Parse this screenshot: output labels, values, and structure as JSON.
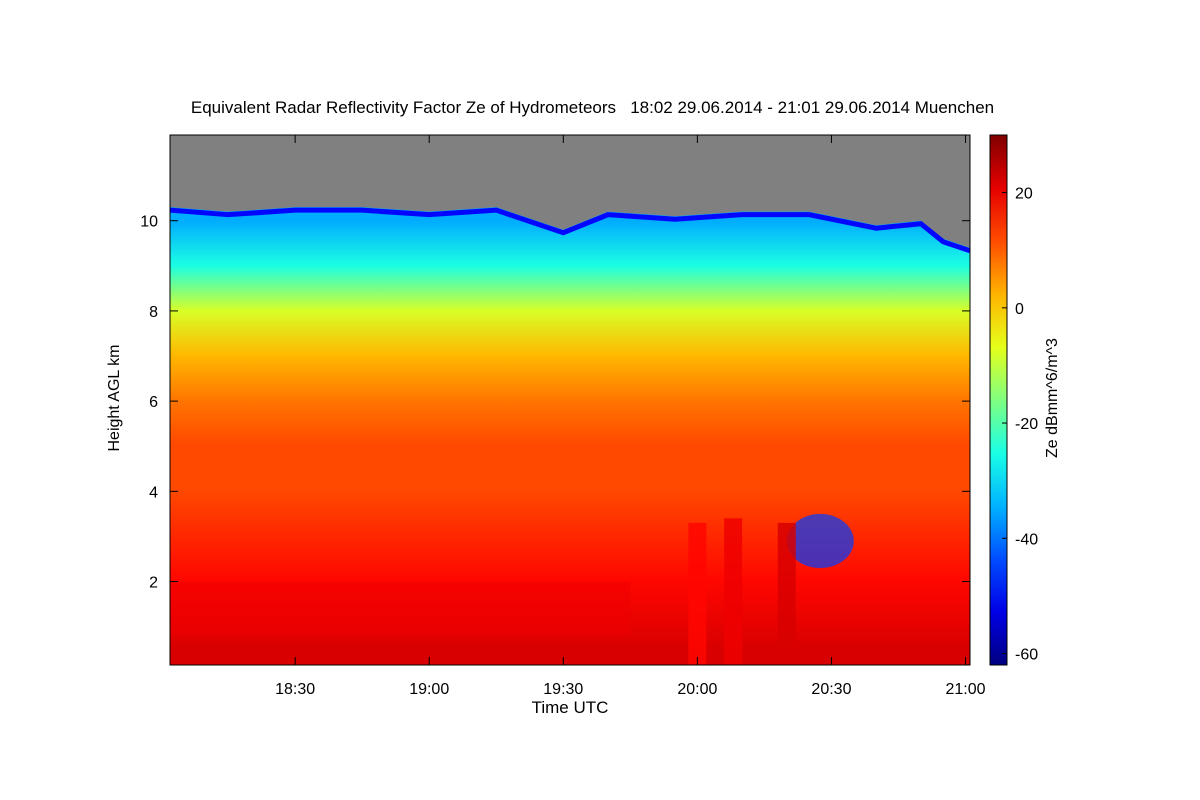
{
  "chart_data": {
    "type": "heatmap",
    "title": "Equivalent Radar Reflectivity Factor Ze of Hydrometeors   18:02 29.06.2014 - 21:01 29.06.2014 Muenchen",
    "xlabel": "Time UTC",
    "ylabel": "Height AGL km",
    "colorbar_label": "Ze dBmm^6/m^3",
    "x_range": [
      "18:02",
      "21:01"
    ],
    "y_range_km": [
      0.15,
      11.9
    ],
    "x_ticks": [
      "18:30",
      "19:00",
      "19:30",
      "20:00",
      "20:30",
      "21:00"
    ],
    "y_ticks": [
      2,
      4,
      6,
      8,
      10
    ],
    "colorbar_range": [
      -62,
      30
    ],
    "colorbar_ticks": [
      20,
      0,
      -20,
      -40,
      -60
    ],
    "no_signal_color": "#808080",
    "cloud_top_km": [
      {
        "t": "18:02",
        "h": 10.3
      },
      {
        "t": "18:15",
        "h": 10.2
      },
      {
        "t": "18:30",
        "h": 10.3
      },
      {
        "t": "18:45",
        "h": 10.3
      },
      {
        "t": "19:00",
        "h": 10.2
      },
      {
        "t": "19:15",
        "h": 10.3
      },
      {
        "t": "19:30",
        "h": 9.8
      },
      {
        "t": "19:40",
        "h": 10.2
      },
      {
        "t": "19:55",
        "h": 10.1
      },
      {
        "t": "20:10",
        "h": 10.2
      },
      {
        "t": "20:25",
        "h": 10.2
      },
      {
        "t": "20:40",
        "h": 9.9
      },
      {
        "t": "20:50",
        "h": 10.0
      },
      {
        "t": "20:55",
        "h": 9.6
      },
      {
        "t": "21:01",
        "h": 9.4
      }
    ],
    "mean_reflectivity_dbz_by_height": [
      {
        "h_km": 10.0,
        "ze": -35
      },
      {
        "h_km": 9.0,
        "ze": -25
      },
      {
        "h_km": 8.0,
        "ze": -8
      },
      {
        "h_km": 7.0,
        "ze": 2
      },
      {
        "h_km": 6.0,
        "ze": 8
      },
      {
        "h_km": 5.0,
        "ze": 12
      },
      {
        "h_km": 4.0,
        "ze": 12
      },
      {
        "h_km": 2.0,
        "ze": 18
      },
      {
        "h_km": 0.5,
        "ze": 22
      }
    ],
    "melting_layer_km": 1.95,
    "convective_cells": [
      {
        "t": "20:00",
        "h_top_km": 3.3,
        "ze": 18
      },
      {
        "t": "20:08",
        "h_top_km": 3.4,
        "ze": 20
      },
      {
        "t": "20:20",
        "h_top_km": 3.3,
        "ze": 22
      }
    ],
    "low_echo_region": {
      "t": [
        "20:20",
        "20:35"
      ],
      "h_km": [
        2.3,
        3.5
      ],
      "ze": -45
    }
  }
}
